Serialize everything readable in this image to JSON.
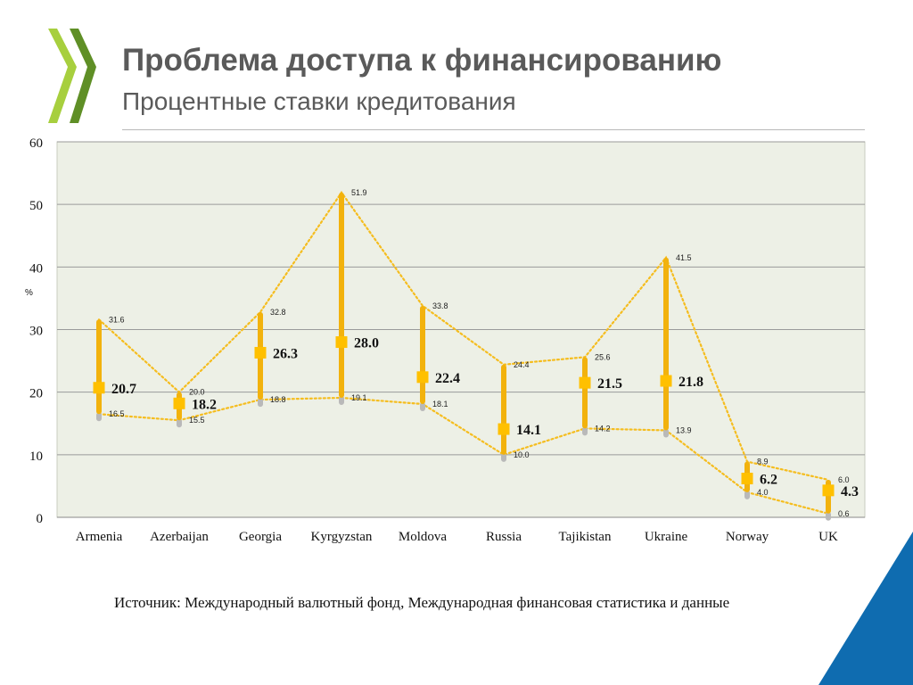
{
  "header": {
    "title": "Проблема доступа к финансированию",
    "subtitle": "Процентные ставки кредитования"
  },
  "footer": {
    "source": "Источник: Международный валютный фонд, Международная финансовая статистика и данные"
  },
  "brand": {
    "logo_color_light": "#a7cf3e",
    "logo_color_dark": "#5f8f26",
    "corner_color": "#0f6cb0"
  },
  "chart_data": {
    "type": "high-low-mean",
    "title": "",
    "xlabel": "",
    "ylabel": "%",
    "ylim": [
      0,
      60
    ],
    "yticks": [
      0,
      10,
      20,
      30,
      40,
      50,
      60
    ],
    "grid": true,
    "categories": [
      "Armenia",
      "Azerbaijan",
      "Georgia",
      "Kyrgyzstan",
      "Moldova",
      "Russia",
      "Tajikistan",
      "Ukraine",
      "Norway",
      "UK"
    ],
    "series": [
      {
        "values": [
          31.6,
          20.0,
          32.8,
          51.9,
          33.8,
          24.4,
          25.6,
          41.5,
          8.9,
          6.0
        ]
      },
      {
        "values": [
          20.7,
          18.2,
          26.3,
          28.0,
          22.4,
          14.1,
          21.5,
          21.8,
          6.2,
          4.3
        ]
      },
      {
        "values": [
          16.5,
          15.5,
          18.8,
          19.1,
          18.1,
          10.0,
          14.2,
          13.9,
          4.0,
          0.6
        ]
      }
    ],
    "colors": {
      "plot_background": "#edf0e6",
      "gridline": "#9a9a9a",
      "bar": "#f2b20d",
      "bar_shadow": "#b9b9b9",
      "marker": "#ffc000",
      "dotted_line": "#f5bd1f"
    }
  }
}
